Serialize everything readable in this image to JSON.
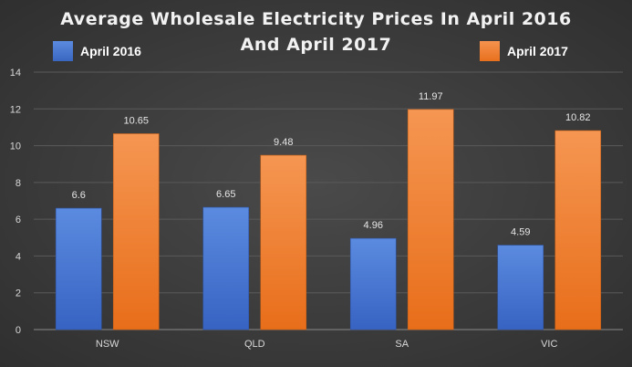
{
  "chart_data": {
    "type": "bar",
    "title_line1": "Average Wholesale Electricity Prices In April 2016",
    "title_line2": "And April 2017",
    "xlabel": "",
    "ylabel": "",
    "categories": [
      "NSW",
      "QLD",
      "SA",
      "VIC"
    ],
    "series": [
      {
        "name": "April 2016",
        "values": [
          6.6,
          6.65,
          4.96,
          4.59
        ],
        "labels": [
          "6.6",
          "6.65",
          "4.96",
          "4.59"
        ],
        "color": "#4472C4"
      },
      {
        "name": "April 2017",
        "values": [
          10.65,
          9.48,
          11.97,
          10.82
        ],
        "labels": [
          "10.65",
          "9.48",
          "11.97",
          "10.82"
        ],
        "color": "#ED7D31"
      }
    ],
    "ylim": [
      0,
      14
    ],
    "yticks": [
      0,
      2,
      4,
      6,
      8,
      10,
      12,
      14
    ],
    "grid": true,
    "legend_position": "top"
  }
}
